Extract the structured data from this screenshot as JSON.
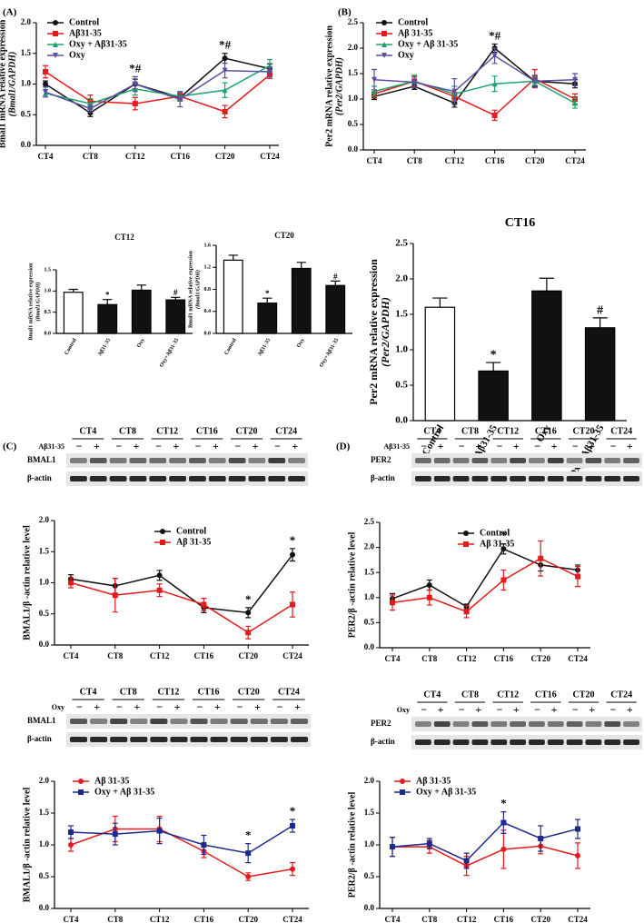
{
  "chart_data": [
    {
      "type": "line",
      "panel": "(A)",
      "categories": [
        "CT4",
        "CT8",
        "CT12",
        "CT16",
        "CT20",
        "CT24"
      ],
      "ylabel": [
        "Bmal1 mRNA relative expression",
        "(Bmal1/GAPDH)"
      ],
      "ylim": [
        0,
        2
      ],
      "yticks": [
        {
          "value": 0,
          "label": "0.0"
        },
        0.5,
        {
          "value": 1,
          "label": "1.0"
        },
        1.5,
        {
          "value": 2,
          "label": "2.0"
        }
      ],
      "legend": "upper left",
      "series": [
        {
          "name": "Control",
          "color": "#111111",
          "marker": "circle",
          "values": [
            1.0,
            0.53,
            1.0,
            0.78,
            1.42,
            1.25
          ],
          "errors": [
            0.05,
            0.06,
            0.08,
            0.06,
            0.08,
            0.08
          ]
        },
        {
          "name": "Aβ31-35",
          "color": "#e41a1c",
          "marker": "square",
          "values": [
            1.2,
            0.72,
            0.68,
            0.8,
            0.55,
            1.15
          ],
          "errors": [
            0.1,
            0.1,
            0.1,
            0.06,
            0.1,
            0.06
          ]
        },
        {
          "name": "Oxy + Aβ31-35",
          "color": "#1aa36a",
          "marker": "triangle",
          "values": [
            0.85,
            0.68,
            0.92,
            0.8,
            0.9,
            1.3
          ],
          "errors": [
            0.06,
            0.08,
            0.1,
            0.08,
            0.12,
            0.1
          ]
        },
        {
          "name": "Oxy",
          "color": "#5a4fa0",
          "marker": "triangle-down",
          "values": [
            0.87,
            0.6,
            1.0,
            0.75,
            1.22,
            1.2
          ],
          "errors": [
            0.08,
            0.06,
            0.12,
            0.12,
            0.12,
            0.08
          ]
        }
      ],
      "annotations": [
        {
          "text": "*#",
          "category": "CT12"
        },
        {
          "text": "*#",
          "category": "CT20"
        }
      ]
    },
    {
      "type": "line",
      "panel": "(B)",
      "categories": [
        "CT4",
        "CT8",
        "CT12",
        "CT16",
        "CT20",
        "CT24"
      ],
      "ylabel": [
        "Per2 mRNA relative expression",
        "(Per2/GAPDH)"
      ],
      "ylim": [
        0,
        2.5
      ],
      "yticks": [
        {
          "value": 0,
          "label": "0.0"
        },
        0.5,
        {
          "value": 1,
          "label": "1.0"
        },
        1.5,
        {
          "value": 2,
          "label": "2.0"
        },
        2.5
      ],
      "legend": "upper left",
      "series": [
        {
          "name": "Control",
          "color": "#111111",
          "marker": "circle",
          "values": [
            1.05,
            1.25,
            0.92,
            2.0,
            1.35,
            1.3
          ],
          "errors": [
            0.06,
            0.06,
            0.08,
            0.08,
            0.1,
            0.08
          ]
        },
        {
          "name": "Aβ 31-35",
          "color": "#e41a1c",
          "marker": "square",
          "values": [
            1.1,
            1.35,
            1.05,
            0.68,
            1.4,
            1.0
          ],
          "errors": [
            0.08,
            0.1,
            0.08,
            0.1,
            0.18,
            0.1
          ]
        },
        {
          "name": "Oxy + Aβ 31-35",
          "color": "#1aa36a",
          "marker": "triangle",
          "values": [
            1.15,
            1.35,
            1.1,
            1.3,
            1.35,
            0.92
          ],
          "errors": [
            0.1,
            0.12,
            0.15,
            0.15,
            0.08,
            0.1
          ]
        },
        {
          "name": "Oxy",
          "color": "#5a4fa0",
          "marker": "triangle-down",
          "values": [
            1.38,
            1.33,
            1.15,
            1.85,
            1.35,
            1.38
          ],
          "errors": [
            0.2,
            0.1,
            0.25,
            0.15,
            0.12,
            0.12
          ]
        }
      ],
      "annotations": [
        {
          "text": "*#",
          "category": "CT16"
        }
      ]
    },
    {
      "type": "bar",
      "title": "CT12",
      "categories": [
        "Control",
        "Aβ31-35",
        "Oxy",
        "Oxy+Aβ31-35"
      ],
      "ylabel": [
        "Bmal1 mRNA relative expression",
        "(Bmal1/GAPDH)"
      ],
      "ylim": [
        0,
        1.5
      ],
      "yticks": [
        {
          "value": 0,
          "label": "0.0"
        },
        0.5,
        {
          "value": 1,
          "label": "1.0"
        },
        1.5
      ],
      "colors": [
        "#ffffff",
        "#111111",
        "#111111",
        "#111111"
      ],
      "values": [
        0.97,
        0.68,
        1.02,
        0.79
      ],
      "errors": [
        0.07,
        0.12,
        0.12,
        0.06
      ],
      "notes": [
        null,
        "*",
        null,
        "#"
      ]
    },
    {
      "type": "bar",
      "title": "CT20",
      "categories": [
        "Control",
        "Aβ31-35",
        "Oxy",
        "Oxy+Aβ31-35"
      ],
      "ylabel": [
        "Bmal1 mRNA relative expression",
        "(Bmal1/GAPDH)"
      ],
      "ylim": [
        0,
        1.6
      ],
      "yticks": [
        {
          "value": 0,
          "label": "0.0"
        },
        0.4,
        0.8,
        1.2,
        1.6
      ],
      "colors": [
        "#ffffff",
        "#111111",
        "#111111",
        "#111111"
      ],
      "values": [
        1.33,
        0.55,
        1.18,
        0.87
      ],
      "errors": [
        0.09,
        0.09,
        0.11,
        0.08
      ],
      "notes": [
        null,
        "*",
        null,
        "#"
      ]
    },
    {
      "type": "bar",
      "title": "CT16",
      "categories": [
        "Control",
        "Aβ31-35",
        "Oxy",
        "Oxy+Aβ31-35"
      ],
      "ylabel": [
        "Per2 mRNA relative expression",
        "(Per2/GAPDH)"
      ],
      "ylim": [
        0,
        2.5
      ],
      "yticks": [
        {
          "value": 0,
          "label": "0.0"
        },
        0.5,
        {
          "value": 1,
          "label": "1.0"
        },
        1.5,
        {
          "value": 2,
          "label": "2.0"
        },
        2.5
      ],
      "colors": [
        "#ffffff",
        "#111111",
        "#111111",
        "#111111"
      ],
      "values": [
        1.6,
        0.7,
        1.83,
        1.31
      ],
      "errors": [
        0.13,
        0.12,
        0.18,
        0.14
      ],
      "notes": [
        null,
        "*",
        null,
        "#"
      ]
    },
    {
      "type": "blot",
      "panel": "(C)",
      "categories": [
        "CT4",
        "CT8",
        "CT12",
        "CT16",
        "CT20",
        "CT24"
      ],
      "treatment": "Aβ31-35",
      "signs": [
        "−",
        "+"
      ],
      "rows": [
        "BMAL1",
        "β-actin"
      ]
    },
    {
      "type": "line",
      "categories": [
        "CT4",
        "CT8",
        "CT12",
        "CT16",
        "CT20",
        "CT24"
      ],
      "ylabel": [
        "BMAL1/β -actin relative level"
      ],
      "ylim": [
        0,
        2
      ],
      "yticks": [
        {
          "value": 0,
          "label": "0.0"
        },
        0.5,
        {
          "value": 1,
          "label": "1.0"
        },
        1.5,
        {
          "value": 2,
          "label": "2.0"
        }
      ],
      "legend": "upper center",
      "series": [
        {
          "name": "Control",
          "color": "#111111",
          "marker": "circle",
          "values": [
            1.06,
            0.95,
            1.12,
            0.6,
            0.52,
            1.45
          ],
          "errors": [
            0.07,
            0.12,
            0.08,
            0.08,
            0.08,
            0.1
          ]
        },
        {
          "name": "Aβ 31-35",
          "color": "#e41a1c",
          "marker": "square",
          "values": [
            1.0,
            0.8,
            0.88,
            0.65,
            0.2,
            0.65
          ],
          "errors": [
            0.08,
            0.27,
            0.1,
            0.1,
            0.1,
            0.2
          ]
        }
      ],
      "annotations": [
        {
          "text": "*",
          "category": "CT20"
        },
        {
          "text": "*",
          "category": "CT24"
        }
      ]
    },
    {
      "type": "blot",
      "panel": "(D)",
      "categories": [
        "CT4",
        "CT8",
        "CT12",
        "CT16",
        "CT20",
        "CT24"
      ],
      "treatment": "Aβ31-35",
      "signs": [
        "−",
        "+"
      ],
      "rows": [
        "PER2",
        "β-actin"
      ]
    },
    {
      "type": "line",
      "categories": [
        "CT4",
        "CT8",
        "CT12",
        "CT16",
        "CT20",
        "CT24"
      ],
      "ylabel": [
        "PER2/β -actin relative level"
      ],
      "ylim": [
        0,
        2.5
      ],
      "yticks": [
        {
          "value": 0,
          "label": "0.0"
        },
        0.5,
        {
          "value": 1,
          "label": "1.0"
        },
        1.5,
        {
          "value": 2,
          "label": "2.0"
        },
        2.5
      ],
      "legend": "upper center",
      "series": [
        {
          "name": "Control",
          "color": "#111111",
          "marker": "circle",
          "values": [
            0.98,
            1.25,
            0.82,
            1.97,
            1.65,
            1.55
          ],
          "errors": [
            0.1,
            0.1,
            0.05,
            0.1,
            0.12,
            0.1
          ]
        },
        {
          "name": "Aβ 31-35",
          "color": "#e41a1c",
          "marker": "square",
          "values": [
            0.9,
            1.0,
            0.72,
            1.35,
            1.78,
            1.42
          ],
          "errors": [
            0.15,
            0.15,
            0.12,
            0.2,
            0.35,
            0.2
          ]
        }
      ],
      "annotations": [
        {
          "text": "*",
          "category": "CT16"
        }
      ]
    },
    {
      "type": "blot",
      "categories": [
        "CT4",
        "CT8",
        "CT12",
        "CT16",
        "CT20",
        "CT24"
      ],
      "treatment": "Oxy",
      "signs": [
        "−",
        "+"
      ],
      "rows": [
        "BMAL1",
        "β-actin"
      ]
    },
    {
      "type": "line",
      "categories": [
        "CT4",
        "CT8",
        "CT12",
        "CT16",
        "CT20",
        "CT24"
      ],
      "ylabel": [
        "BMAL1/β -actin relative level"
      ],
      "ylim": [
        0,
        2
      ],
      "yticks": [
        {
          "value": 0,
          "label": "0.0"
        },
        0.5,
        {
          "value": 1,
          "label": "1.0"
        },
        1.5,
        {
          "value": 2,
          "label": "2.0"
        }
      ],
      "legend": "upper left",
      "series": [
        {
          "name": "Aβ 31-35",
          "color": "#e41a1c",
          "marker": "circle",
          "values": [
            1.0,
            1.25,
            1.25,
            0.9,
            0.5,
            0.62
          ],
          "errors": [
            0.1,
            0.2,
            0.2,
            0.1,
            0.06,
            0.1
          ]
        },
        {
          "name": "Oxy + Aβ 31-35",
          "color": "#1c2a8c",
          "marker": "square",
          "values": [
            1.2,
            1.17,
            1.22,
            1.0,
            0.87,
            1.3
          ],
          "errors": [
            0.1,
            0.17,
            0.2,
            0.15,
            0.15,
            0.1
          ]
        }
      ],
      "annotations": [
        {
          "text": "*",
          "category": "CT20"
        },
        {
          "text": "*",
          "category": "CT24"
        }
      ]
    },
    {
      "type": "blot",
      "categories": [
        "CT4",
        "CT8",
        "CT12",
        "CT16",
        "CT20",
        "CT24"
      ],
      "treatment": "Oxy",
      "signs": [
        "−",
        "+"
      ],
      "rows": [
        "PER2",
        "β-actin"
      ]
    },
    {
      "type": "line",
      "categories": [
        "CT4",
        "CT8",
        "CT12",
        "CT16",
        "CT20",
        "CT24"
      ],
      "ylabel": [
        "PER2/β -actin relative level"
      ],
      "ylim": [
        0,
        2
      ],
      "yticks": [
        {
          "value": 0,
          "label": "0.0"
        },
        0.5,
        {
          "value": 1,
          "label": "1.0"
        },
        1.5,
        {
          "value": 2,
          "label": "2.0"
        }
      ],
      "legend": "upper left",
      "series": [
        {
          "name": "Aβ 31-35",
          "color": "#e41a1c",
          "marker": "circle",
          "values": [
            0.97,
            0.97,
            0.67,
            0.93,
            0.98,
            0.83
          ],
          "errors": [
            0.15,
            0.1,
            0.15,
            0.3,
            0.12,
            0.2
          ]
        },
        {
          "name": "Oxy + Aβ 31-35",
          "color": "#1c2a8c",
          "marker": "square",
          "values": [
            0.97,
            1.02,
            0.75,
            1.35,
            1.1,
            1.25
          ],
          "errors": [
            0.15,
            0.08,
            0.12,
            0.17,
            0.2,
            0.15
          ]
        }
      ],
      "annotations": [
        {
          "text": "*",
          "category": "CT16"
        }
      ]
    }
  ]
}
